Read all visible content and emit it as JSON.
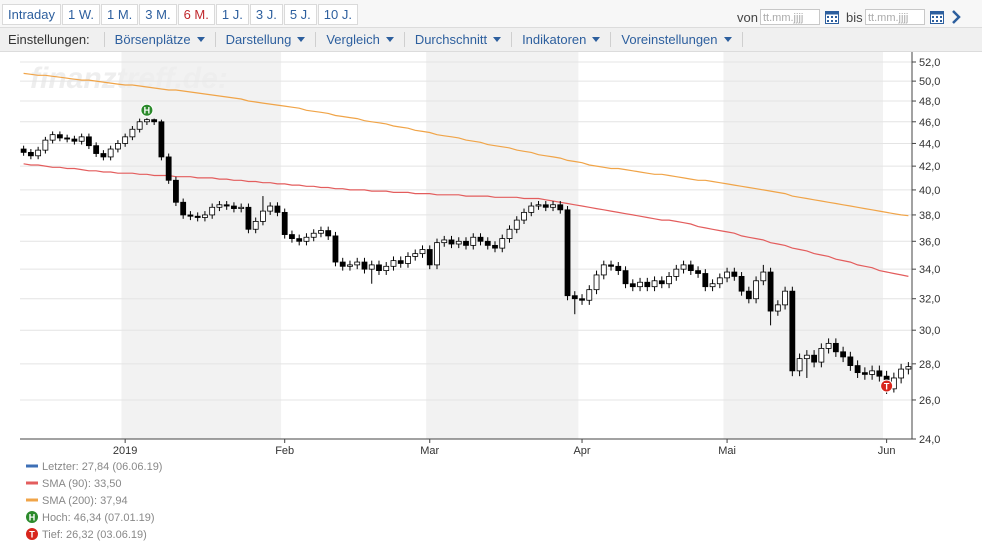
{
  "toolbar": {
    "ranges": [
      "Intraday",
      "1 W.",
      "1 M.",
      "3 M.",
      "6 M.",
      "1 J.",
      "3 J.",
      "5 J.",
      "10 J."
    ],
    "active_range": "6 M.",
    "from_label": "von",
    "to_label": "bis",
    "date_placeholder": "tt.mm.jjjj"
  },
  "settings": {
    "label": "Einstellungen:",
    "menus": [
      "Börsenplätze",
      "Darstellung",
      "Vergleich",
      "Durchschnitt",
      "Indikatoren",
      "Voreinstellungen"
    ]
  },
  "watermark": "finanztreff.de:",
  "chart_data": {
    "type": "candlestick",
    "log_scale": true,
    "grid": true,
    "ylim": [
      24,
      52
    ],
    "yticks": [
      {
        "value": 24,
        "label": "24,0"
      },
      {
        "value": 26,
        "label": "26,0"
      },
      {
        "value": 28,
        "label": "28,0"
      },
      {
        "value": 30,
        "label": "30,0"
      },
      {
        "value": 32,
        "label": "32,0"
      },
      {
        "value": 34,
        "label": "34,0"
      },
      {
        "value": 36,
        "label": "36,0"
      },
      {
        "value": 38,
        "label": "38,0"
      },
      {
        "value": 40,
        "label": "40,0"
      },
      {
        "value": 42,
        "label": "42,0"
      },
      {
        "value": 44,
        "label": "44,0"
      },
      {
        "value": 46,
        "label": "46,0"
      },
      {
        "value": 48,
        "label": "48,0"
      },
      {
        "value": 50,
        "label": "50,0"
      },
      {
        "value": 52,
        "label": "52,0"
      }
    ],
    "categories": [
      null,
      null,
      null,
      null,
      null,
      null,
      null,
      null,
      null,
      null,
      null,
      null,
      null,
      null,
      "2019",
      null,
      null,
      null,
      null,
      null,
      null,
      null,
      null,
      null,
      null,
      null,
      null,
      null,
      null,
      null,
      null,
      null,
      null,
      null,
      null,
      null,
      "Feb",
      null,
      null,
      null,
      null,
      null,
      null,
      null,
      null,
      null,
      null,
      null,
      null,
      null,
      null,
      null,
      null,
      null,
      null,
      null,
      "Mar",
      null,
      null,
      null,
      null,
      null,
      null,
      null,
      null,
      null,
      null,
      null,
      null,
      null,
      null,
      null,
      null,
      null,
      null,
      null,
      null,
      "Apr",
      null,
      null,
      null,
      null,
      null,
      null,
      null,
      null,
      null,
      null,
      null,
      null,
      null,
      null,
      null,
      null,
      null,
      null,
      null,
      "Mai",
      null,
      null,
      null,
      null,
      null,
      null,
      null,
      null,
      null,
      null,
      null,
      null,
      null,
      null,
      null,
      null,
      null,
      null,
      null,
      null,
      null,
      "Jun",
      null,
      null,
      null
    ],
    "series": [
      {
        "type": "candlestick",
        "up_color": "#ffffff",
        "down_color": "#000000",
        "open": [
          43.5,
          43.2,
          42.9,
          43.4,
          44.3,
          44.8,
          44.5,
          44.4,
          44.2,
          44.6,
          43.8,
          43.1,
          42.8,
          43.5,
          44.0,
          44.6,
          45.3,
          46.0,
          46.2,
          46.0,
          42.8,
          40.8,
          39.0,
          38.0,
          37.9,
          37.8,
          38.0,
          38.6,
          38.8,
          38.7,
          38.5,
          38.6,
          36.9,
          37.5,
          38.3,
          38.7,
          38.2,
          36.5,
          36.2,
          36.0,
          36.3,
          36.6,
          36.8,
          36.4,
          34.5,
          34.2,
          34.3,
          34.5,
          34.0,
          34.3,
          33.9,
          34.2,
          34.6,
          34.4,
          34.9,
          35.1,
          35.4,
          34.3,
          35.9,
          36.1,
          35.8,
          36.0,
          35.7,
          36.3,
          36.0,
          35.7,
          35.5,
          36.2,
          36.9,
          37.6,
          38.2,
          38.7,
          38.8,
          38.6,
          38.8,
          38.4,
          32.2,
          32.0,
          31.9,
          32.6,
          33.6,
          34.3,
          34.2,
          33.9,
          33.0,
          32.8,
          33.1,
          32.8,
          33.2,
          33.0,
          33.5,
          34.0,
          34.3,
          33.9,
          33.7,
          32.8,
          33.0,
          33.4,
          33.8,
          33.5,
          32.5,
          32.0,
          33.2,
          33.8,
          31.2,
          31.6,
          32.5,
          27.6,
          28.3,
          28.5,
          28.1,
          28.9,
          29.2,
          28.7,
          28.4,
          27.9,
          27.5,
          27.4,
          27.6,
          27.3,
          26.6,
          27.2,
          27.7
        ],
        "high": [
          43.8,
          43.5,
          43.7,
          44.6,
          45.1,
          45.1,
          44.8,
          44.7,
          44.9,
          44.9,
          44.1,
          43.4,
          43.8,
          44.3,
          44.9,
          45.6,
          46.3,
          46.34,
          46.3,
          46.2,
          43.1,
          41.1,
          39.3,
          38.3,
          38.2,
          38.3,
          38.9,
          39.1,
          39.1,
          39.0,
          38.9,
          38.9,
          37.8,
          39.5,
          39.0,
          39.0,
          38.5,
          36.8,
          36.5,
          36.6,
          36.9,
          37.1,
          37.1,
          36.7,
          34.8,
          34.6,
          34.8,
          34.8,
          34.6,
          34.6,
          34.5,
          34.9,
          34.9,
          35.2,
          35.4,
          35.7,
          35.7,
          36.2,
          36.4,
          36.4,
          36.3,
          36.3,
          36.6,
          36.6,
          36.3,
          36.0,
          36.5,
          37.2,
          37.9,
          38.5,
          39.0,
          39.1,
          39.1,
          39.1,
          39.1,
          38.7,
          32.5,
          32.3,
          32.9,
          33.9,
          34.6,
          34.6,
          34.5,
          34.2,
          33.3,
          33.4,
          33.4,
          33.5,
          33.5,
          33.8,
          34.3,
          34.6,
          34.6,
          34.2,
          34.0,
          33.3,
          33.7,
          34.1,
          34.1,
          33.8,
          32.8,
          33.5,
          34.3,
          34.1,
          31.9,
          32.8,
          32.8,
          28.6,
          28.8,
          28.8,
          29.2,
          29.5,
          29.5,
          29.0,
          28.7,
          28.2,
          27.8,
          27.9,
          27.9,
          27.6,
          27.5,
          28.0,
          28.1
        ],
        "low": [
          42.9,
          42.6,
          42.6,
          43.1,
          44.0,
          44.2,
          44.1,
          43.9,
          43.9,
          43.5,
          42.8,
          42.5,
          42.5,
          43.2,
          43.7,
          44.3,
          45.0,
          45.7,
          45.7,
          42.5,
          40.5,
          38.7,
          37.7,
          37.6,
          37.5,
          37.5,
          37.7,
          38.3,
          38.4,
          38.2,
          38.2,
          36.6,
          36.6,
          37.2,
          38.0,
          37.9,
          36.2,
          35.9,
          35.7,
          35.7,
          36.0,
          36.3,
          36.1,
          34.2,
          33.9,
          33.9,
          34.0,
          33.7,
          33.0,
          33.6,
          33.6,
          33.9,
          34.1,
          34.1,
          34.6,
          34.8,
          34.0,
          34.0,
          35.6,
          35.5,
          35.5,
          35.4,
          35.4,
          35.7,
          35.4,
          35.2,
          35.2,
          35.9,
          36.6,
          37.3,
          37.9,
          38.4,
          38.3,
          38.3,
          38.1,
          31.9,
          31.0,
          31.6,
          31.6,
          32.3,
          33.3,
          33.9,
          33.6,
          32.7,
          32.5,
          32.5,
          32.5,
          32.5,
          32.7,
          32.7,
          33.2,
          33.7,
          33.6,
          33.4,
          32.5,
          32.5,
          32.7,
          33.1,
          33.2,
          32.2,
          31.7,
          31.7,
          32.9,
          30.3,
          30.9,
          31.3,
          27.3,
          27.3,
          27.2,
          27.8,
          27.8,
          28.6,
          28.4,
          28.1,
          27.6,
          27.2,
          27.1,
          27.1,
          27.0,
          26.32,
          26.4,
          26.9,
          27.4
        ],
        "close": [
          43.2,
          42.9,
          43.4,
          44.3,
          44.8,
          44.5,
          44.4,
          44.2,
          44.6,
          43.8,
          43.1,
          42.8,
          43.5,
          44.0,
          44.6,
          45.3,
          46.0,
          46.2,
          46.0,
          42.8,
          40.8,
          39.0,
          38.0,
          37.9,
          37.8,
          38.0,
          38.6,
          38.8,
          38.7,
          38.5,
          38.6,
          36.9,
          37.5,
          38.3,
          38.7,
          38.2,
          36.5,
          36.2,
          36.0,
          36.3,
          36.6,
          36.8,
          36.4,
          34.5,
          34.2,
          34.3,
          34.5,
          34.0,
          34.3,
          33.9,
          34.2,
          34.6,
          34.4,
          34.9,
          35.1,
          35.4,
          34.3,
          35.9,
          36.1,
          35.8,
          36.0,
          35.7,
          36.3,
          36.0,
          35.7,
          35.5,
          36.2,
          36.9,
          37.6,
          38.2,
          38.7,
          38.8,
          38.6,
          38.8,
          38.4,
          32.2,
          32.0,
          31.9,
          32.6,
          33.6,
          34.3,
          34.2,
          33.9,
          33.0,
          32.8,
          33.1,
          32.8,
          33.2,
          33.0,
          33.5,
          34.0,
          34.3,
          33.9,
          33.7,
          32.8,
          33.0,
          33.4,
          33.8,
          33.5,
          32.5,
          32.0,
          33.2,
          33.8,
          31.2,
          31.6,
          32.5,
          27.6,
          28.3,
          28.5,
          28.1,
          28.9,
          29.2,
          28.7,
          28.4,
          27.9,
          27.5,
          27.4,
          27.6,
          27.3,
          26.6,
          27.2,
          27.7,
          27.84
        ]
      },
      {
        "type": "line",
        "name": "SMA (90): 33,50",
        "color": "#e35d5d",
        "values": [
          42.2,
          42.1,
          42.1,
          42.0,
          41.9,
          41.9,
          41.8,
          41.8,
          41.7,
          41.6,
          41.6,
          41.5,
          41.5,
          41.4,
          41.4,
          41.4,
          41.3,
          41.3,
          41.2,
          41.2,
          41.2,
          41.1,
          41.1,
          41.1,
          41.0,
          41.0,
          41.0,
          40.9,
          40.9,
          40.8,
          40.8,
          40.7,
          40.7,
          40.6,
          40.6,
          40.5,
          40.5,
          40.4,
          40.4,
          40.3,
          40.3,
          40.2,
          40.2,
          40.1,
          40.1,
          40.0,
          40.0,
          40.0,
          39.9,
          39.9,
          39.9,
          39.8,
          39.8,
          39.8,
          39.7,
          39.7,
          39.7,
          39.6,
          39.6,
          39.6,
          39.6,
          39.5,
          39.5,
          39.5,
          39.5,
          39.4,
          39.4,
          39.4,
          39.4,
          39.3,
          39.3,
          39.3,
          39.2,
          39.1,
          39.0,
          38.9,
          38.8,
          38.7,
          38.6,
          38.5,
          38.4,
          38.3,
          38.2,
          38.1,
          38.0,
          37.9,
          37.8,
          37.7,
          37.6,
          37.6,
          37.5,
          37.4,
          37.3,
          37.1,
          37.0,
          36.9,
          36.8,
          36.7,
          36.6,
          36.4,
          36.3,
          36.2,
          36.1,
          35.9,
          35.8,
          35.7,
          35.5,
          35.4,
          35.3,
          35.1,
          35.0,
          34.9,
          34.7,
          34.6,
          34.5,
          34.3,
          34.2,
          34.1,
          33.9,
          33.8,
          33.7,
          33.6,
          33.5
        ]
      },
      {
        "type": "line",
        "name": "SMA (200): 37,94",
        "color": "#f0a448",
        "values": [
          50.8,
          50.7,
          50.6,
          50.6,
          50.5,
          50.4,
          50.3,
          50.2,
          50.1,
          50.1,
          50.0,
          49.9,
          49.8,
          49.7,
          49.6,
          49.6,
          49.5,
          49.4,
          49.3,
          49.2,
          49.1,
          49.1,
          49.0,
          48.9,
          48.8,
          48.7,
          48.6,
          48.5,
          48.4,
          48.3,
          48.2,
          48.0,
          47.9,
          47.8,
          47.7,
          47.6,
          47.5,
          47.4,
          47.3,
          47.1,
          47.0,
          46.9,
          46.8,
          46.6,
          46.5,
          46.4,
          46.3,
          46.1,
          46.0,
          45.9,
          45.8,
          45.6,
          45.5,
          45.4,
          45.2,
          45.1,
          45.0,
          44.8,
          44.7,
          44.6,
          44.5,
          44.3,
          44.2,
          44.1,
          43.9,
          43.8,
          43.7,
          43.6,
          43.4,
          43.3,
          43.2,
          43.0,
          42.9,
          42.8,
          42.7,
          42.5,
          42.4,
          42.3,
          42.1,
          42.0,
          41.9,
          41.8,
          41.8,
          41.7,
          41.6,
          41.5,
          41.4,
          41.3,
          41.3,
          41.2,
          41.1,
          41.0,
          40.9,
          40.8,
          40.8,
          40.7,
          40.6,
          40.5,
          40.4,
          40.3,
          40.2,
          40.1,
          40.0,
          39.9,
          39.8,
          39.7,
          39.5,
          39.4,
          39.3,
          39.2,
          39.1,
          39.0,
          38.9,
          38.8,
          38.7,
          38.6,
          38.5,
          38.4,
          38.3,
          38.2,
          38.1,
          38.0,
          37.94
        ]
      }
    ],
    "last": {
      "name": "Letzter: 27,84 (06.06.19)",
      "color": "#3d6fb6"
    },
    "high_marker": {
      "label": "H",
      "name": "Hoch: 46,34 (07.01.19)",
      "color": "#2b8a2b"
    },
    "low_marker": {
      "label": "T",
      "name": "Tief: 26,32 (03.06.19)",
      "color": "#d8261c"
    }
  }
}
